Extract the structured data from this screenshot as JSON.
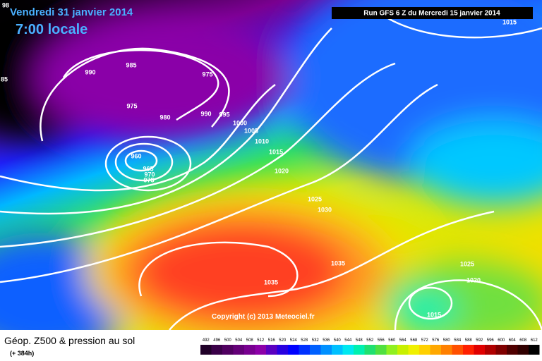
{
  "header": {
    "date": "Vendredi 31 janvier 2014",
    "time": "7:00 locale",
    "run": "Run GFS 6 Z du Mercredi 15 janvier 2014"
  },
  "isobar_labels": [
    "98",
    "85",
    "990",
    "985",
    "975",
    "975",
    "980",
    "990",
    "995",
    "1000",
    "1005",
    "1010",
    "1015",
    "1020",
    "960",
    "965",
    "970",
    "975",
    "1025",
    "1030",
    "1035",
    "1035",
    "1025",
    "1020",
    "1015",
    "1015"
  ],
  "copyright": "Copyright (c) 2013 Meteociel.fr",
  "footer": {
    "title": "Géop. Z500 & pression au sol",
    "lead": "(+ 384h)"
  },
  "colorbar": {
    "labels": [
      492,
      496,
      500,
      504,
      508,
      512,
      516,
      520,
      524,
      528,
      532,
      536,
      540,
      544,
      548,
      552,
      556,
      560,
      564,
      568,
      572,
      576,
      580,
      584,
      588,
      592,
      596,
      600,
      604,
      608,
      612
    ],
    "colors": [
      "#200028",
      "#3a0048",
      "#500060",
      "#640078",
      "#780090",
      "#8c00a8",
      "#5a00c0",
      "#2800e0",
      "#0000ff",
      "#0030ff",
      "#0060ff",
      "#0090ff",
      "#00c0ff",
      "#00e8f0",
      "#00f0b0",
      "#20e070",
      "#50e040",
      "#90f020",
      "#c8f000",
      "#f0f000",
      "#ffd000",
      "#ffa800",
      "#ff8000",
      "#ff5000",
      "#ff2000",
      "#e00000",
      "#b00000",
      "#800000",
      "#500000",
      "#300000",
      "#000000"
    ]
  }
}
